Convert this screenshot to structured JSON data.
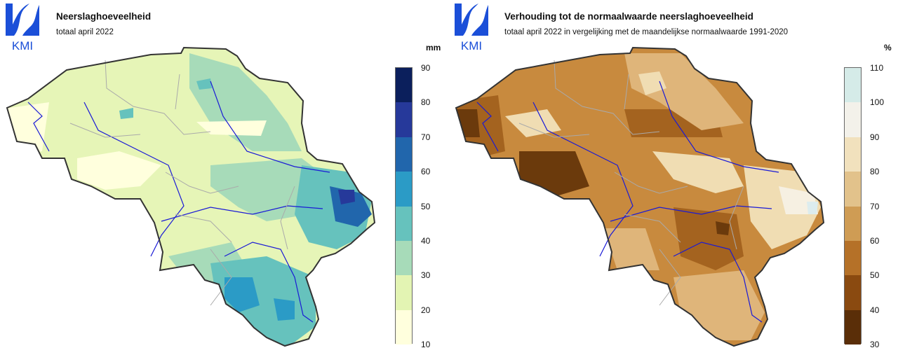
{
  "left_panel": {
    "logo_text": "KMI",
    "title": "Neerslaghoeveelheid",
    "subtitle": "totaal april 2022",
    "unit": "mm",
    "legend": {
      "ticks": [
        "90",
        "80",
        "70",
        "60",
        "50",
        "40",
        "30",
        "20",
        "10"
      ],
      "colors": [
        "#0b1f5c",
        "#26399a",
        "#2166ac",
        "#2b9bc6",
        "#66c2bd",
        "#a7dbb9",
        "#e3f4b3",
        "#ffffdd"
      ]
    },
    "map_fill_colors": {
      "base": "#e6f5b7",
      "lighter": "#ffffdd",
      "moderate": "#a7dbb9",
      "wet": "#66c2bd",
      "wetter": "#2b9bc6",
      "wettest": "#2166ac",
      "peak": "#26399a"
    }
  },
  "right_panel": {
    "logo_text": "KMI",
    "title": "Verhouding tot de normaalwaarde neerslaghoeveelheid",
    "subtitle": "totaal april 2022 in vergelijking met de maandelijkse normaalwaarde 1991-2020",
    "unit": "%",
    "legend": {
      "ticks": [
        "110",
        "100",
        "90",
        "80",
        "70",
        "60",
        "50",
        "40",
        "30"
      ],
      "colors": [
        "#d5ebe8",
        "#f3f1ea",
        "#f1e1bd",
        "#e2c28b",
        "#cf9c54",
        "#b57128",
        "#8a4a10",
        "#5a2e08"
      ]
    },
    "map_fill_colors": {
      "base": "#c88a3e",
      "dry": "#a4631f",
      "driest": "#6b3a0c",
      "medium": "#dfb57a",
      "light": "#f0ddb3",
      "lightest": "#f6f0e2",
      "above": "#dcecee"
    }
  },
  "map_colors": {
    "border": "#333333",
    "rivers": "#1a1ad6",
    "provinces": "#aaaaaa",
    "logo_blue": "#1b4fd8"
  }
}
